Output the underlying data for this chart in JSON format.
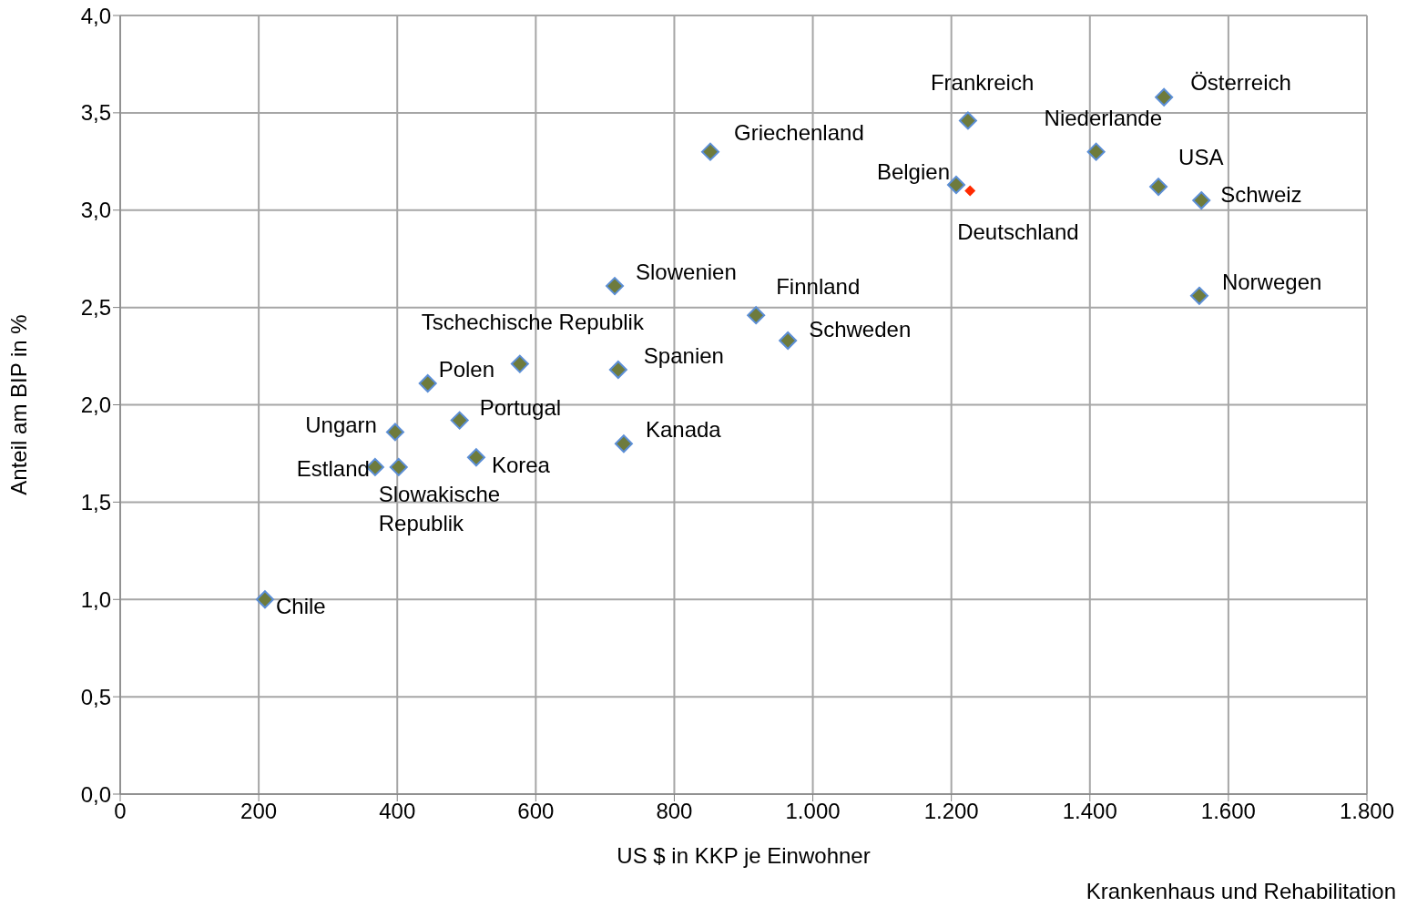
{
  "chart_data": {
    "type": "scatter",
    "xlabel": "US $ in KKP je Einwohner",
    "ylabel": "Anteil am BIP in %",
    "marker": "diamond",
    "grid": true,
    "xlim": [
      0,
      1800
    ],
    "ylim": [
      0,
      4
    ],
    "xticks": [
      0,
      200,
      400,
      600,
      800,
      {
        "value": 1000,
        "label": "1.000"
      },
      {
        "value": 1200,
        "label": "1.200"
      },
      {
        "value": 1400,
        "label": "1.400"
      },
      {
        "value": 1600,
        "label": "1.600"
      },
      {
        "value": 1800,
        "label": "1.800"
      }
    ],
    "yticks": [
      {
        "value": 0,
        "label": "0,0"
      },
      {
        "value": 0.5,
        "label": "0,5"
      },
      {
        "value": 1,
        "label": "1,0"
      },
      {
        "value": 1.5,
        "label": "1,5"
      },
      {
        "value": 2,
        "label": "2,0"
      },
      {
        "value": 2.5,
        "label": "2,5"
      },
      {
        "value": 3,
        "label": "3,0"
      },
      {
        "value": 3.5,
        "label": "3,5"
      },
      {
        "value": 4,
        "label": "4,0"
      }
    ],
    "series": [
      {
        "color": "#6e7b3c",
        "x": [
          209,
          368,
          402,
          397,
          444,
          490,
          514,
          577,
          714,
          719,
          727,
          852,
          918,
          964,
          1207,
          1224,
          1409,
          1499,
          1507,
          1561,
          1558
        ],
        "values": [
          1.0,
          1.68,
          1.68,
          1.86,
          2.11,
          1.92,
          1.73,
          2.21,
          2.61,
          2.18,
          1.8,
          3.3,
          2.46,
          2.33,
          3.13,
          3.46,
          3.3,
          3.12,
          3.58,
          3.05,
          2.56
        ]
      },
      {
        "color": "#ff2a00",
        "x": [
          1227
        ],
        "values": [
          3.1
        ]
      }
    ],
    "annotations": [
      {
        "text": "Chile",
        "x": 209,
        "y": 1.0
      },
      {
        "text": "Estland",
        "x": 368,
        "y": 1.68
      },
      {
        "text": "Slowakische Republik",
        "x": 402,
        "y": 1.68
      },
      {
        "text": "Ungarn",
        "x": 397,
        "y": 1.86
      },
      {
        "text": "Polen",
        "x": 444,
        "y": 2.11
      },
      {
        "text": "Portugal",
        "x": 490,
        "y": 1.92
      },
      {
        "text": "Korea",
        "x": 514,
        "y": 1.73
      },
      {
        "text": "Tschechische Republik",
        "x": 577,
        "y": 2.21
      },
      {
        "text": "Slowenien",
        "x": 714,
        "y": 2.61
      },
      {
        "text": "Spanien",
        "x": 719,
        "y": 2.18
      },
      {
        "text": "Kanada",
        "x": 727,
        "y": 1.8
      },
      {
        "text": "Griechenland",
        "x": 852,
        "y": 3.3
      },
      {
        "text": "Finnland",
        "x": 918,
        "y": 2.46
      },
      {
        "text": "Schweden",
        "x": 964,
        "y": 2.33
      },
      {
        "text": "Belgien",
        "x": 1207,
        "y": 3.13
      },
      {
        "text": "Frankreich",
        "x": 1224,
        "y": 3.46
      },
      {
        "text": "Niederlande",
        "x": 1409,
        "y": 3.3
      },
      {
        "text": "USA",
        "x": 1499,
        "y": 3.12
      },
      {
        "text": "Österreich",
        "x": 1507,
        "y": 3.58
      },
      {
        "text": "Schweiz",
        "x": 1561,
        "y": 3.05
      },
      {
        "text": "Norwegen",
        "x": 1558,
        "y": 2.56
      },
      {
        "text": "Deutschland",
        "x": 1227,
        "y": 3.1
      },
      "Krankenhaus und Rehabilitation"
    ]
  }
}
